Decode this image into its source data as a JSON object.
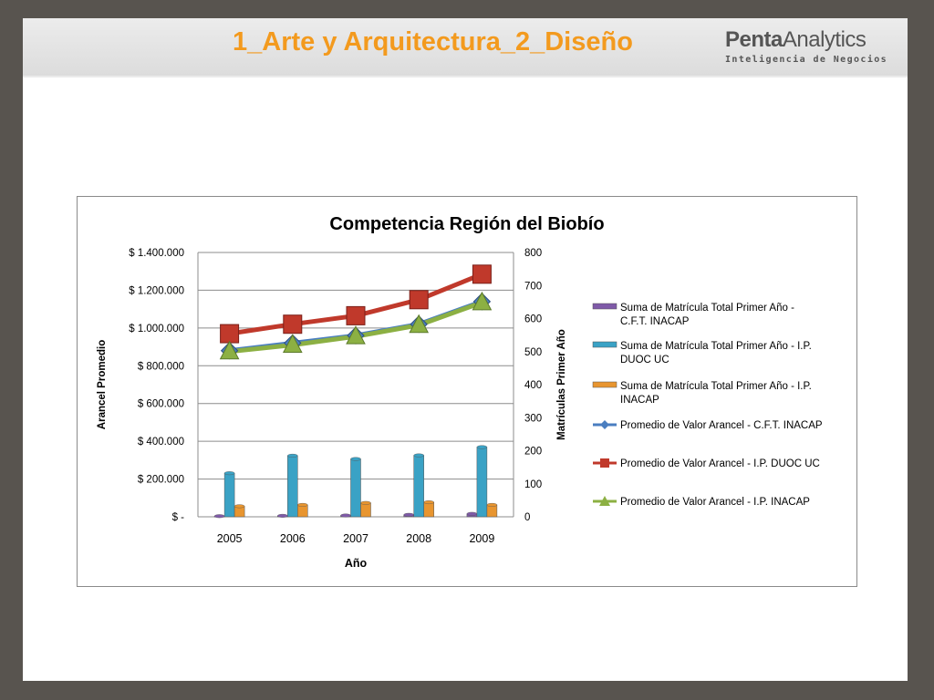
{
  "slide": {
    "title": "1_Arte y Arquitectura_2_Diseño",
    "logo_main_bold": "Penta",
    "logo_main_light": "Analytics",
    "logo_sub": "Inteligencia de Negocios"
  },
  "colors": {
    "slide_title": "#f39a1e",
    "background_frame": "#58544f",
    "series_purple": "#7f5aa8",
    "series_teal": "#3aa2c5",
    "series_orange": "#e8952f",
    "series_blue": "#4a7ec0",
    "series_red": "#c0392b",
    "series_green": "#8cb043"
  },
  "chart_data": {
    "type": "bar",
    "combo": "bar+line",
    "title": "Competencia Región del Biobío",
    "xlabel": "Año",
    "ylabel_left": "Arancel Promedio",
    "ylabel_right": "Matrículas Primer Año",
    "categories": [
      "2005",
      "2006",
      "2007",
      "2008",
      "2009"
    ],
    "ylim_left": [
      0,
      1400000
    ],
    "yticks_left": [
      {
        "value": 0,
        "label": "$ -"
      },
      {
        "value": 200000,
        "label": "$ 200.000"
      },
      {
        "value": 400000,
        "label": "$ 400.000"
      },
      {
        "value": 600000,
        "label": "$ 600.000"
      },
      {
        "value": 800000,
        "label": "$ 800.000"
      },
      {
        "value": 1000000,
        "label": "$ 1.000.000"
      },
      {
        "value": 1200000,
        "label": "$ 1.200.000"
      },
      {
        "value": 1400000,
        "label": "$ 1.400.000"
      }
    ],
    "ylim_right": [
      0,
      800
    ],
    "yticks_right": [
      "0",
      "100",
      "200",
      "300",
      "400",
      "500",
      "600",
      "700",
      "800"
    ],
    "grid": true,
    "legend_position": "right",
    "bar_series": [
      {
        "name": "Suma de Matrícula Total Primer Año - C.F.T. INACAP",
        "legend_lines": [
          "Suma de Matrícula Total Primer Año -",
          "C.F.T. INACAP"
        ],
        "color": "#7f5aa8",
        "axis": "right",
        "values": [
          2,
          3,
          4,
          6,
          9
        ]
      },
      {
        "name": "Suma de Matrícula Total Primer Año - I.P. DUOC UC",
        "legend_lines": [
          "Suma de Matrícula Total Primer Año - I.P.",
          "DUOC UC"
        ],
        "color": "#3aa2c5",
        "axis": "right",
        "values": [
          132,
          185,
          175,
          186,
          211
        ]
      },
      {
        "name": "Suma de Matrícula Total Primer Año - I.P. INACAP",
        "legend_lines": [
          "Suma de Matrícula Total Primer Año - I.P.",
          "INACAP"
        ],
        "color": "#e8952f",
        "axis": "right",
        "values": [
          32,
          36,
          42,
          44,
          36
        ]
      }
    ],
    "line_series": [
      {
        "name": "Promedio de Valor Arancel  - C.F.T. INACAP",
        "legend_lines": [
          "Promedio de Valor Arancel  - C.F.T. INACAP"
        ],
        "color": "#4a7ec0",
        "marker": "diamond",
        "axis": "left",
        "values": [
          880000,
          920000,
          960000,
          1020000,
          1140000
        ]
      },
      {
        "name": "Promedio de Valor Arancel  - I.P. DUOC UC",
        "legend_lines": [
          "Promedio de Valor Arancel  - I.P. DUOC UC"
        ],
        "color": "#c0392b",
        "marker": "square",
        "axis": "left",
        "values": [
          970000,
          1020000,
          1065000,
          1150000,
          1285000
        ]
      },
      {
        "name": "Promedio de Valor Arancel  - I.P. INACAP",
        "legend_lines": [
          "Promedio de Valor Arancel  - I.P. INACAP"
        ],
        "color": "#8cb043",
        "marker": "triangle",
        "axis": "left",
        "values": [
          875000,
          910000,
          955000,
          1015000,
          1135000
        ]
      }
    ]
  }
}
